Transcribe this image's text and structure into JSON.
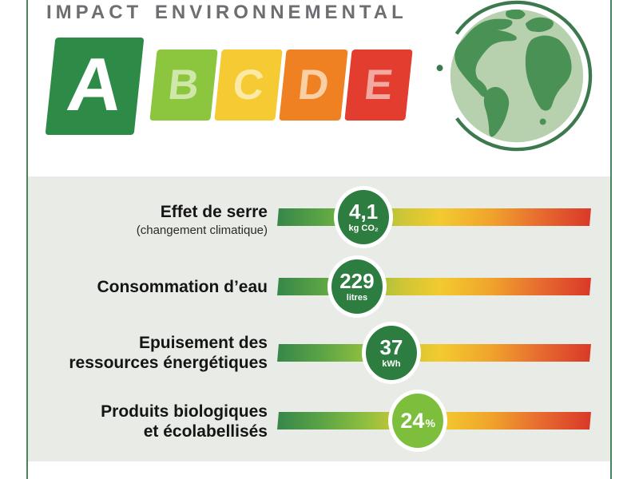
{
  "header": {
    "title": "IMPACT ENVIRONNEMENTAL",
    "title_color": "#6d6e71",
    "rating_scale": {
      "grades": [
        {
          "label": "A",
          "tile_color": "#2e8b47",
          "letter_color": "#ffffff"
        },
        {
          "label": "B",
          "tile_color": "#8cc63e",
          "letter_color": "#cfe7a9"
        },
        {
          "label": "C",
          "tile_color": "#f6ca32",
          "letter_color": "#fbe9a4"
        },
        {
          "label": "D",
          "tile_color": "#ef8123",
          "letter_color": "#f9d0a4"
        },
        {
          "label": "E",
          "tile_color": "#e23d2e",
          "letter_color": "#f4a9a0"
        }
      ]
    },
    "globe_colors": {
      "ocean": "#b7d0ae",
      "land": "#4a9155",
      "ring": "#3c7a4e"
    }
  },
  "panel": {
    "background": "#e9ece6"
  },
  "metrics": [
    {
      "label_line1": "Effet de serre",
      "sublabel": "(changement climatique)",
      "value": "4,1",
      "unit": "kg CO₂",
      "badge_color": "#2d7d41",
      "position_pct": 27.4
    },
    {
      "label_line1": "Consommation d’eau",
      "value": "229",
      "unit": "litres",
      "badge_color": "#2d7d41",
      "position_pct": 25.3
    },
    {
      "label_line1": "Epuisement des",
      "label_line2": "ressources énergétiques",
      "value": "37",
      "unit": "kWh",
      "badge_color": "#2d7d41",
      "position_pct": 36.3
    },
    {
      "label_line1": "Produits biologiques",
      "label_line2": "et écolabellisés",
      "value": "24",
      "unit": "%",
      "badge_color": "#7dbf3d",
      "position_pct": 44.8
    }
  ],
  "chart_data": {
    "type": "bar",
    "title": "IMPACT ENVIRONNEMENTAL",
    "categories": [
      "Effet de serre (changement climatique)",
      "Consommation d’eau",
      "Epuisement des ressources énergétiques",
      "Produits biologiques et écolabellisés"
    ],
    "values": [
      4.1,
      229,
      37,
      24
    ],
    "units": [
      "kg CO₂",
      "litres",
      "kWh",
      "%"
    ],
    "value_labels": [
      "4,1 kg CO₂",
      "229 litres",
      "37 kWh",
      "24%"
    ],
    "marker_positions_pct_along_scale": [
      27.4,
      25.3,
      36.3,
      44.8
    ],
    "scale_grades": [
      "A",
      "B",
      "C",
      "D",
      "E"
    ],
    "scale_style": "green-to-red gradient bar, marker closer to green = better",
    "legend_position": "none",
    "grid": false
  }
}
